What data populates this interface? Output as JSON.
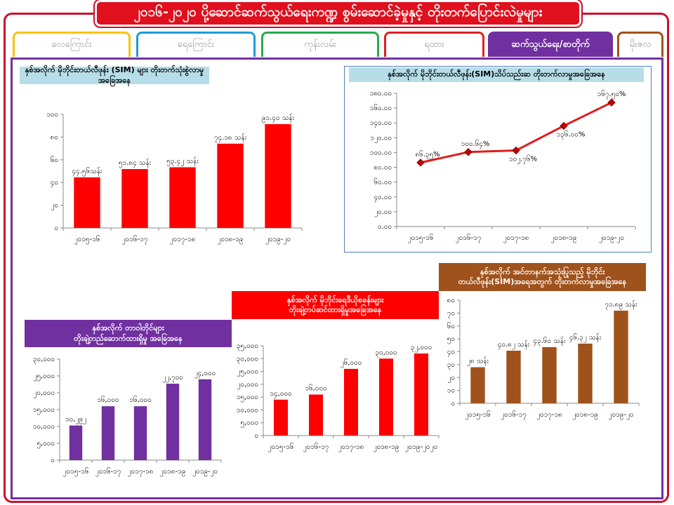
{
  "header": {
    "title": "၂၀၁၆-၂၀၂၀ ပို့ဆောင်ဆက်သွယ်ရေးကဏ္ဍ စွမ်းဆောင်ခဲ့မှုနှင့် တိုးတက်ပြောင်းလဲမှုများ"
  },
  "tabs": [
    "လေကြောင်း",
    "ရေကြောင်း",
    "ကုန်းလမ်း",
    "ရထား",
    "ဆက်သွယ်ရေး/စာတိုက်",
    "မိုးဇလ"
  ],
  "chart_data": [
    {
      "type": "bar",
      "title": "နှစ်အလိုက် မိုဘိုင်းတယ်လီဖုန်း (SIM) များ တိုးတက်သုံးစွဲလာမှုအခြေအနေ",
      "color": "#ff0000",
      "categories": [
        "၂၀၁၅-၁၆",
        "၂၀၁၆-၁၇",
        "၂၀၁၇-၁၈",
        "၂၀၁၈-၁၉",
        "၂၀၁၉-၂၀"
      ],
      "values": [
        44.56,
        51.84,
        53.42,
        74.18,
        91.4
      ],
      "value_labels": [
        "၄၄.၅၆သန်း",
        "၅၁.၈၄ သန်း",
        "၅၃.၄၂ သန်း",
        "၇၄.၁၈ သန်း",
        "၉၁.၄၀ သန်း"
      ],
      "ylim": [
        0,
        100
      ],
      "yticks": [
        {
          "value": 0,
          "label": "၀"
        },
        {
          "value": 20,
          "label": "၂၀"
        },
        {
          "value": 40,
          "label": "၄၀"
        },
        {
          "value": 60,
          "label": "၆၀"
        },
        {
          "value": 80,
          "label": "၈၀"
        },
        {
          "value": 100,
          "label": "၁၀၀"
        }
      ]
    },
    {
      "type": "line",
      "title": "နှစ်အလိုက် မိုဘိုင်းတယ်လီဖုန်း(SIM)သိပ်သည်းဆ တိုးတက်လာမှုအခြေအနေ",
      "color": "#e31a1c",
      "categories": [
        "၂၀၁၅-၁၆",
        "၂၀၁၆-၁၇",
        "၂၀၁၇-၁၈",
        "၂၀၁၈-၁၉",
        "၂၀၁၉-၂၀"
      ],
      "values": [
        86.35,
        100.64,
        102.76,
        136,
        167.5
      ],
      "value_labels": [
        "၈၆.၃၅%",
        "၁၀၀.၆၄%",
        "၁၀၂.၇၆%",
        "၁၃၆.၀၀%",
        "၁၆၇.၅၀%"
      ],
      "ylim": [
        0,
        180
      ],
      "yticks": [
        {
          "value": 0,
          "label": "၀.၀၀"
        },
        {
          "value": 20,
          "label": "၂၀.၀၀"
        },
        {
          "value": 40,
          "label": "၄၀.၀၀"
        },
        {
          "value": 60,
          "label": "၆၀.၀၀"
        },
        {
          "value": 80,
          "label": "၈၀.၀၀"
        },
        {
          "value": 100,
          "label": "၁၀၀.၀၀"
        },
        {
          "value": 120,
          "label": "၁၂၀.၀၀"
        },
        {
          "value": 140,
          "label": "၁၄၀.၀၀"
        },
        {
          "value": 160,
          "label": "၁၆၀.၀၀"
        },
        {
          "value": 180,
          "label": "၁၈၀.၀၀"
        }
      ]
    },
    {
      "type": "bar",
      "title": "နှစ်အလိုက် တာဝါတိုင်များ\nတိုးချဲ့တည်ဆောက်ထားရှိမှု အခြေအနေ",
      "color": "#7030a0",
      "categories": [
        "၂၀၁၅-၁၆",
        "၂၀၁၆-၁၇",
        "၂၀၁၇-၁၈",
        "၂၀၁၈-၁၉",
        "၂၀၁၉-၂၀"
      ],
      "values": [
        10292,
        16000,
        16000,
        22700,
        24000
      ],
      "value_labels": [
        "၁၀,၂၉၂",
        "၁၆,၀၀၀",
        "၁၆,၀၀၀",
        "၂၂,၇၀၀",
        "၂၄,၀၀၀"
      ],
      "ylim": [
        0,
        30000
      ],
      "yticks": [
        {
          "value": 0,
          "label": "၀"
        },
        {
          "value": 5000,
          "label": "၅,၀၀၀"
        },
        {
          "value": 10000,
          "label": "၁၀,၀၀၀"
        },
        {
          "value": 15000,
          "label": "၁၅,၀၀၀"
        },
        {
          "value": 20000,
          "label": "၂၀,၀၀၀"
        },
        {
          "value": 25000,
          "label": "၂၅,၀၀၀"
        },
        {
          "value": 30000,
          "label": "၃၀,၀၀၀"
        }
      ]
    },
    {
      "type": "bar",
      "title": "နှစ်အလိုက် မိုဘိုင်းရေဒီယိုစခန်းများ\nတိုးချဲ့တပ်ဆင်ထားရှိမှုအခြေအနေ",
      "color": "#ff0000",
      "categories": [
        "၂၀၁၅-၁၆",
        "၂၀၁၆-၁၇",
        "၂၀၁၇-၁၈",
        "၂၀၁၈-၁၉",
        "၂၀၁၉-၂၀၂၀"
      ],
      "values": [
        14000,
        16000,
        26000,
        30000,
        32000
      ],
      "value_labels": [
        "၁၄,၀၀၀",
        "၁၆,၀၀၀",
        "၂၆,၀၀၀",
        "၃၀,၀၀၀",
        "၃၂,၀၀၀"
      ],
      "ylim": [
        0,
        35000
      ],
      "yticks": [
        {
          "value": 0,
          "label": "၀"
        },
        {
          "value": 5000,
          "label": "၅,၀၀၀"
        },
        {
          "value": 10000,
          "label": "၁၀,၀၀၀"
        },
        {
          "value": 15000,
          "label": "၁၅,၀၀၀"
        },
        {
          "value": 20000,
          "label": "၂၀,၀၀၀"
        },
        {
          "value": 25000,
          "label": "၂၅,၀၀၀"
        },
        {
          "value": 30000,
          "label": "၃၀,၀၀၀"
        },
        {
          "value": 35000,
          "label": "၃၅,၀၀၀"
        }
      ]
    },
    {
      "type": "bar",
      "title": "နှစ်အလိုက် အင်တာနက်အသုံးပြုသည့် မိုဘိုင်း\nတယ်လီဖုန်း(SIM)အရေအတွက် တိုးတက်လာမှုအခြေအနေ",
      "color": "#a0521c",
      "categories": [
        "၂၀၁၅-၁၆",
        "၂၀၁၆-၁၇",
        "၂၀၁၇-၁၈",
        "၂၀၁၈-၁၉",
        "၂၀၁၉-၂၀"
      ],
      "values": [
        28,
        40.82,
        43.6,
        46.32,
        71.89
      ],
      "value_labels": [
        "၂၈ သန်း",
        "၄၀.၈၂ သန်း",
        "၄၃.၆၀ သန်း",
        "၄၆.၃၂ သန်း",
        "၇၁.၈၉ သန်း"
      ],
      "ylim": [
        0,
        80
      ],
      "yticks": [
        {
          "value": 0,
          "label": "၀"
        },
        {
          "value": 10,
          "label": "၁၀"
        },
        {
          "value": 20,
          "label": "၂၀"
        },
        {
          "value": 30,
          "label": "၃၀"
        },
        {
          "value": 40,
          "label": "၄၀"
        },
        {
          "value": 50,
          "label": "၅၀"
        },
        {
          "value": 60,
          "label": "၆၀"
        },
        {
          "value": 70,
          "label": "၇၀"
        },
        {
          "value": 80,
          "label": "၈၀"
        }
      ]
    }
  ]
}
